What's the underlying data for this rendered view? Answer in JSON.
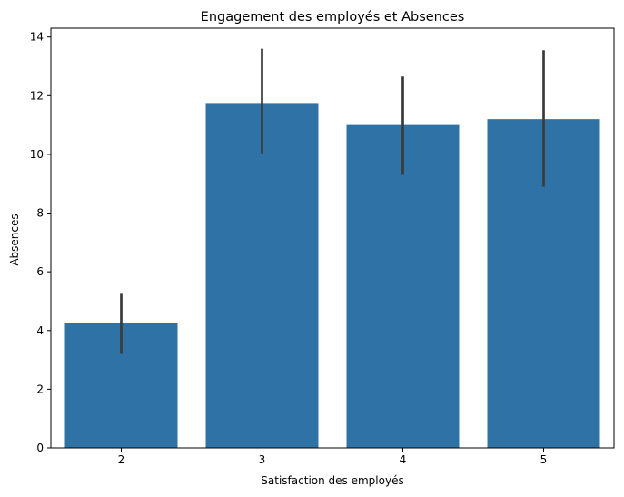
{
  "chart_data": {
    "type": "bar",
    "title": "Engagement des employés et Absences",
    "xlabel": "Satisfaction des employés",
    "ylabel": "Absences",
    "categories": [
      "2",
      "3",
      "4",
      "5"
    ],
    "values": [
      4.25,
      11.75,
      11.0,
      11.2
    ],
    "error_low": [
      3.2,
      10.0,
      9.3,
      8.9
    ],
    "error_high": [
      5.25,
      13.6,
      12.65,
      13.55
    ],
    "ylim": [
      0,
      14.3
    ],
    "yticks": [
      0,
      2,
      4,
      6,
      8,
      10,
      12,
      14
    ],
    "grid": false,
    "colors": {
      "bar": "#2f73a6",
      "error_bar": "#3b3b3b",
      "axes": "#000000"
    }
  }
}
